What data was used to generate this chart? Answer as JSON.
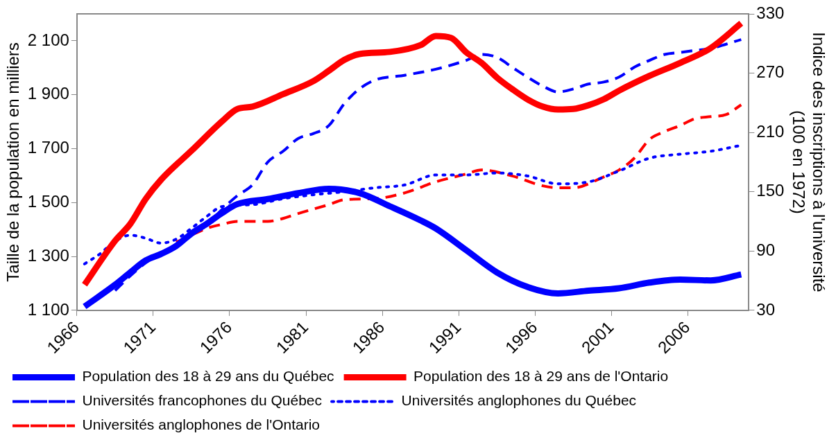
{
  "chart_data": {
    "type": "line",
    "ylabel": "Taille de la population en milliers",
    "y2label": "Indice des inscriptions à l'université (100 en 1972)",
    "xlim": [
      1966,
      2010
    ],
    "xticks": [
      1966,
      1971,
      1976,
      1981,
      1986,
      1991,
      1996,
      2001,
      2006
    ],
    "ylim": [
      1100,
      2200
    ],
    "yticks": [
      {
        "value": 1100,
        "label": "1 100"
      },
      {
        "value": 1300,
        "label": "1 300"
      },
      {
        "value": 1500,
        "label": "1 500"
      },
      {
        "value": 1700,
        "label": "1 700"
      },
      {
        "value": 1900,
        "label": "1 900"
      },
      {
        "value": 2100,
        "label": "2 100"
      }
    ],
    "y2lim": [
      30,
      330
    ],
    "y2ticks": [
      30,
      90,
      150,
      210,
      270,
      330
    ],
    "grid": false,
    "legend": "bottom",
    "marker": "none",
    "series": [
      {
        "name": "Population des 18 à 29 ans du Québec",
        "color": "#0000ff",
        "line_style": "solid",
        "x": [
          1966.5,
          1968.5,
          1969.5,
          1970.5,
          1971.5,
          1972.5,
          1973.5,
          1974.5,
          1975.5,
          1976.5,
          1978.5,
          1980.5,
          1982.5,
          1984.5,
          1986.5,
          1988.5,
          1989.5,
          1991.5,
          1993.5,
          1995.5,
          1997.5,
          1999.5,
          2001.5,
          2003.5,
          2005.5,
          2007.5,
          2009.5
        ],
        "values": [
          1114,
          1195,
          1241,
          1285,
          1309,
          1339,
          1385,
          1421,
          1461,
          1494,
          1513,
          1535,
          1551,
          1535,
          1486,
          1434,
          1404,
          1323,
          1241,
          1187,
          1163,
          1173,
          1182,
          1203,
          1214,
          1211,
          1233
        ]
      },
      {
        "name": "Population des 18 à 29 ans de l'Ontario",
        "color": "#ff0000",
        "line_style": "solid",
        "x": [
          1966.5,
          1968.5,
          1969.5,
          1970.5,
          1971.5,
          1973.5,
          1975.5,
          1976.5,
          1977.5,
          1979.5,
          1981.5,
          1982.5,
          1983.5,
          1984.5,
          1986.5,
          1988.5,
          1989.5,
          1990.5,
          1991.5,
          1992.5,
          1993.5,
          1994.5,
          1995.5,
          1996.5,
          1997.5,
          1998.5,
          1999.5,
          2000.5,
          2001.5,
          2003.5,
          2005.5,
          2007.5,
          2009.5
        ],
        "values": [
          1195,
          1358,
          1421,
          1513,
          1584,
          1692,
          1801,
          1847,
          1856,
          1902,
          1951,
          1989,
          2029,
          2051,
          2059,
          2084,
          2118,
          2111,
          2057,
          2018,
          1964,
          1921,
          1883,
          1856,
          1845,
          1847,
          1861,
          1883,
          1915,
          1970,
          2018,
          2073,
          2165
        ]
      },
      {
        "name": "Universités francophones du Québec",
        "color": "#0000ff",
        "line_style": "dashed",
        "axis": "y2",
        "x": [
          1968.5,
          1969.5,
          1970.5,
          1972.5,
          1974.5,
          1975.5,
          1976.5,
          1977.5,
          1978.5,
          1979.5,
          1980.5,
          1981.5,
          1982.5,
          1983.5,
          1984.5,
          1985.5,
          1987.5,
          1989.5,
          1991.5,
          1992.5,
          1993.5,
          1994.5,
          1995.5,
          1996.5,
          1997.5,
          1998.5,
          1999.5,
          2000.5,
          2001.5,
          2002.5,
          2003.5,
          2004.5,
          2005.5,
          2006.5,
          2007.5,
          2009.5
        ],
        "values": [
          50,
          65,
          78,
          97,
          117,
          132,
          146,
          157,
          180,
          191,
          204,
          209,
          217,
          239,
          254,
          263,
          268,
          274,
          283,
          289,
          286,
          276,
          266,
          257,
          251,
          254,
          259,
          261,
          266,
          276,
          283,
          289,
          291,
          293,
          295,
          304
        ]
      },
      {
        "name": "Universités anglophones du Québec",
        "color": "#0000ff",
        "line_style": "dotted",
        "axis": "y2",
        "x": [
          1966.5,
          1967.5,
          1968.5,
          1969.5,
          1970.5,
          1971.5,
          1972.5,
          1973.5,
          1974.5,
          1975.5,
          1977.5,
          1979.5,
          1981.5,
          1983.5,
          1985.5,
          1987.5,
          1989.5,
          1991.5,
          1993.5,
          1995.5,
          1997.5,
          1999.5,
          2001.5,
          2003.5,
          2005.5,
          2007.5,
          2009.5
        ],
        "values": [
          77,
          87,
          100,
          106,
          103,
          98,
          102,
          113,
          125,
          135,
          137,
          143,
          147,
          150,
          154,
          157,
          167,
          167,
          169,
          166,
          158,
          160,
          171,
          184,
          188,
          191,
          197
        ]
      },
      {
        "name": "Universités anglophones de l'Ontario",
        "color": "#ff0000",
        "line_style": "dashed",
        "axis": "y2",
        "x": [
          1972.5,
          1973.5,
          1974.5,
          1975.5,
          1976.5,
          1978.5,
          1979.5,
          1980.5,
          1982.5,
          1983.5,
          1985.5,
          1987.5,
          1989.5,
          1991.5,
          1992.5,
          1994.5,
          1996.5,
          1997.5,
          1998.5,
          2000.5,
          2001.5,
          2002.5,
          2003.5,
          2004.5,
          2005.5,
          2006.5,
          2007.5,
          2008.5,
          2009.5
        ],
        "values": [
          99,
          106,
          113,
          117,
          120,
          120,
          123,
          128,
          137,
          142,
          143,
          149,
          160,
          168,
          172,
          166,
          156,
          154,
          154,
          165,
          172,
          184,
          203,
          211,
          217,
          224,
          226,
          228,
          238
        ]
      }
    ]
  }
}
